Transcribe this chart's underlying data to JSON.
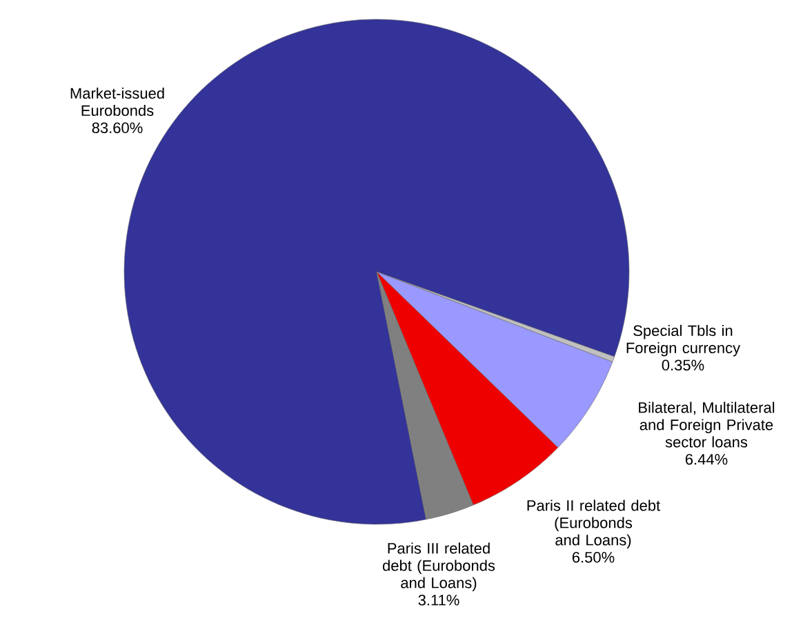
{
  "chart_data": {
    "type": "pie",
    "categories": [
      "Market-issued Eurobonds",
      "Special Tbls in Foreign currency",
      "Bilateral, Multilateral and Foreign Private sector loans",
      "Paris II related debt (Eurobonds and Loans)",
      "Paris III related debt (Eurobonds and Loans)"
    ],
    "values": [
      83.6,
      0.35,
      6.44,
      6.5,
      3.11
    ],
    "value_labels": [
      "83.60%",
      "0.35%",
      "6.44%",
      "6.50%",
      "3.11%"
    ],
    "colors": [
      "#333399",
      "#c0c0c0",
      "#9999ff",
      "#ee0000",
      "#808080"
    ]
  }
}
